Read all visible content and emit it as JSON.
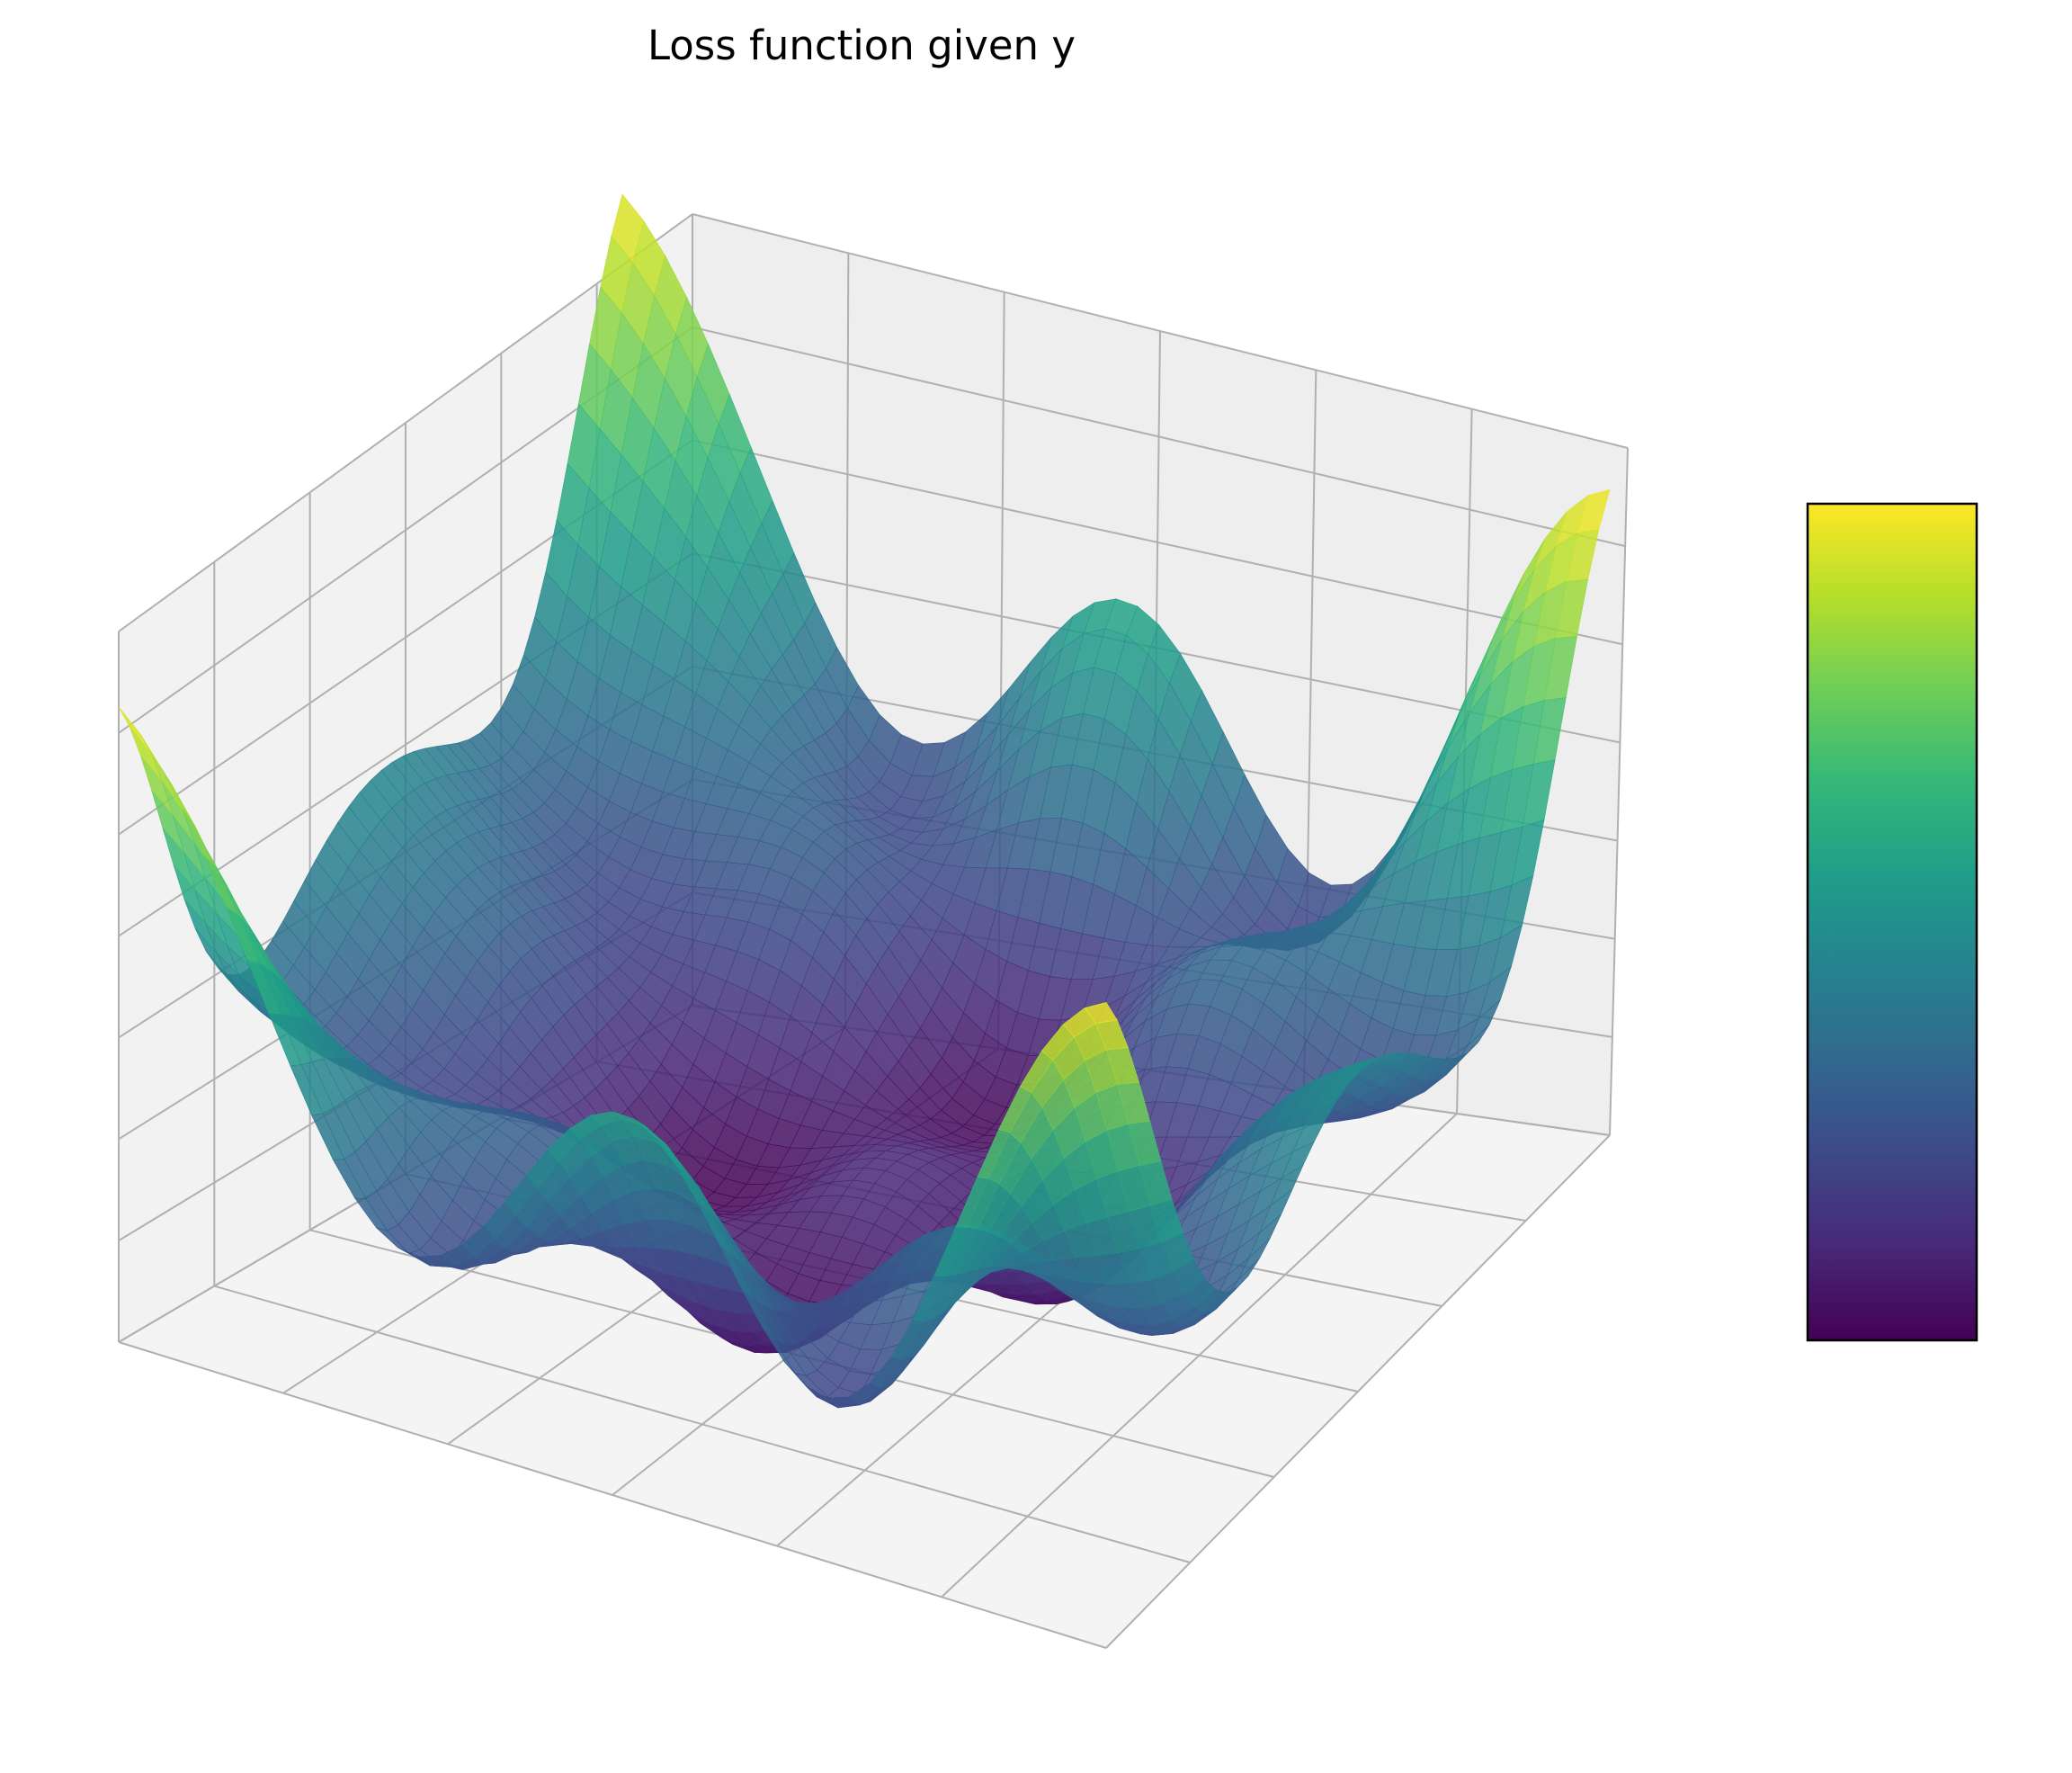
{
  "chart_data": {
    "type": "surface",
    "title": "Loss function given y",
    "xlabel": "",
    "ylabel": "",
    "zlabel": "",
    "grid": true,
    "colormap": "viridis",
    "colorbar": {
      "placement": "right",
      "tick_labels_shown": false
    },
    "colors": {
      "pane": "#f2f2f2",
      "gridline": "#b0b0b0",
      "viridis": [
        "#440154",
        "#482878",
        "#3e4989",
        "#31688e",
        "#26828e",
        "#1f9e89",
        "#35b779",
        "#6ece58",
        "#b5de2b",
        "#fde725"
      ]
    }
  }
}
